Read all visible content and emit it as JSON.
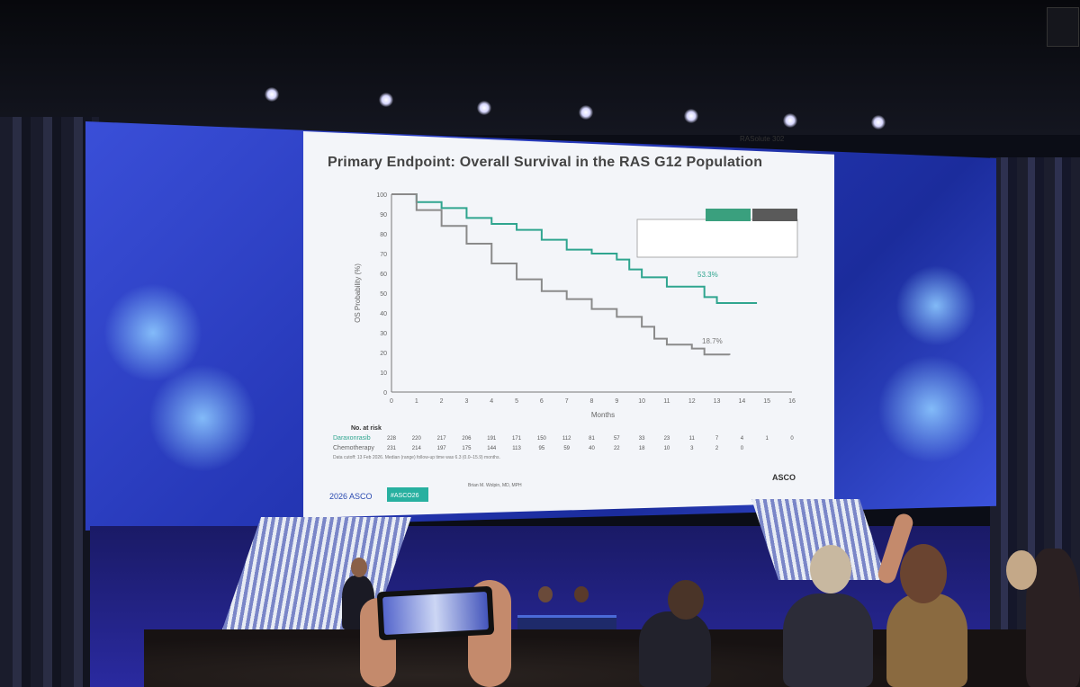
{
  "slide": {
    "title": "Primary Endpoint: Overall Survival in the RAS G12 Population",
    "corner_label": "RASolute 302",
    "y_axis_label": "OS Probability (%)",
    "x_axis_label": "Months",
    "y_ticks": [
      "0",
      "10",
      "20",
      "30",
      "40",
      "50",
      "60",
      "70",
      "80",
      "90",
      "100"
    ],
    "x_ticks": [
      "0",
      "1",
      "2",
      "3",
      "4",
      "5",
      "6",
      "7",
      "8",
      "9",
      "10",
      "11",
      "12",
      "13",
      "14",
      "15",
      "16"
    ],
    "annotation_top": "53.3%",
    "annotation_bottom": "18.7%",
    "at_risk_title": "No. at risk",
    "arm1_name": "Daraxonrasib",
    "arm2_name": "Chemotherapy",
    "arm1_risk": [
      "228",
      "220",
      "217",
      "206",
      "191",
      "171",
      "150",
      "112",
      "81",
      "57",
      "33",
      "23",
      "11",
      "7",
      "4",
      "1",
      "0"
    ],
    "arm2_risk": [
      "231",
      "214",
      "197",
      "175",
      "144",
      "113",
      "95",
      "59",
      "40",
      "22",
      "18",
      "10",
      "3",
      "2",
      "0"
    ],
    "data_cutoff": "Data cutoff: 13 Feb 2026. Median (range) follow-up time was 6.3 (0.0–15.9) months.",
    "brand": "ASCO",
    "meeting": "2026 ASCO",
    "tag": "#ASCO26",
    "presenter": "Brian M. Wolpin, MD, MPH",
    "colors": {
      "arm1": "#2fa58f",
      "arm2": "#8a8a8a",
      "header": "#3aa07e"
    }
  },
  "chart_data": {
    "type": "line",
    "ylabel": "OS Probability (%)",
    "xlabel": "Months",
    "xlim": [
      0,
      16
    ],
    "ylim": [
      0,
      100
    ],
    "series": [
      {
        "name": "Daraxonrasib",
        "x": [
          0,
          1,
          2,
          3,
          4,
          5,
          6,
          7,
          8,
          9,
          9.5,
          10,
          11,
          12,
          12.5,
          13,
          14,
          14.6
        ],
        "y": [
          100,
          96,
          93,
          88,
          85,
          82,
          77,
          72,
          70,
          67,
          62,
          58,
          53.3,
          53.3,
          48,
          45,
          45,
          45
        ]
      },
      {
        "name": "Chemotherapy",
        "x": [
          0,
          1,
          2,
          3,
          4,
          5,
          6,
          7,
          8,
          9,
          10,
          10.5,
          11,
          12,
          12.5,
          13,
          13.5
        ],
        "y": [
          100,
          92,
          84,
          75,
          65,
          57,
          51,
          47,
          42,
          38,
          33,
          27,
          24,
          22,
          19,
          19,
          18.7
        ]
      }
    ]
  }
}
